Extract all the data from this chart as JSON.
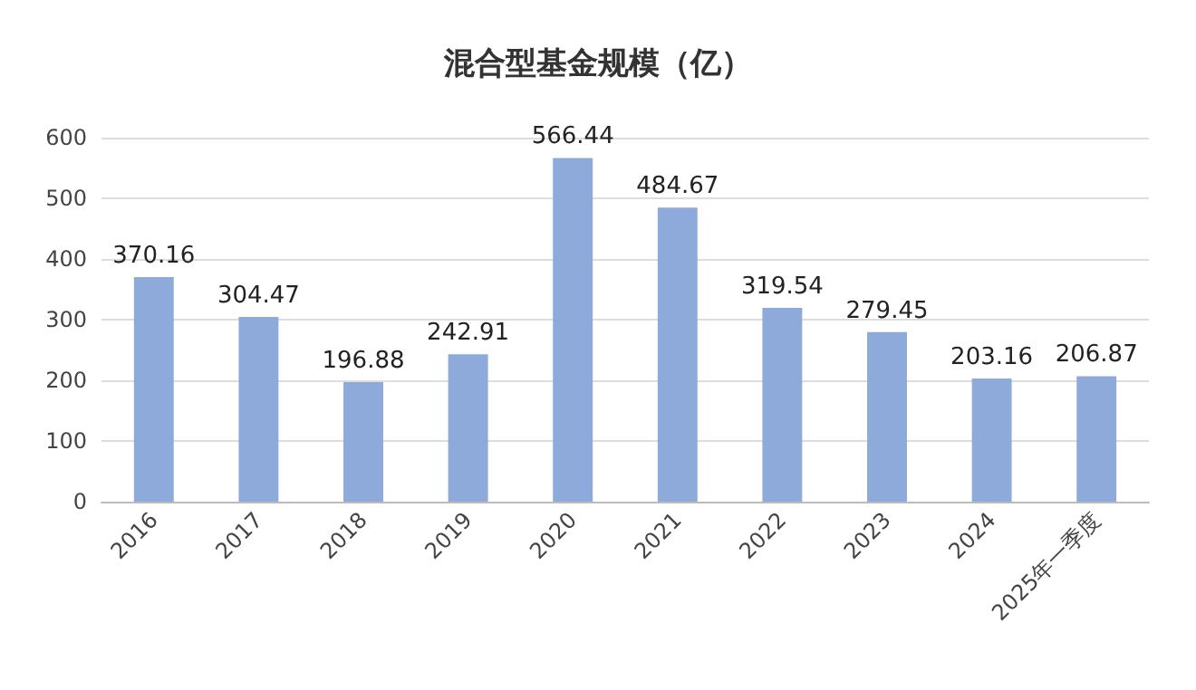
{
  "chart_data": {
    "type": "bar",
    "title": "混合型基金规模（亿）",
    "categories": [
      "2016",
      "2017",
      "2018",
      "2019",
      "2020",
      "2021",
      "2022",
      "2023",
      "2024",
      "2025年一季度"
    ],
    "values": [
      370.16,
      304.47,
      196.88,
      242.91,
      566.44,
      484.67,
      319.54,
      279.45,
      203.16,
      206.87
    ],
    "color": "#8eaadb",
    "ylim": [
      0,
      600
    ],
    "yticks": [
      0,
      100,
      200,
      300,
      400,
      500,
      600
    ],
    "grid": "y",
    "data_labels": true
  }
}
